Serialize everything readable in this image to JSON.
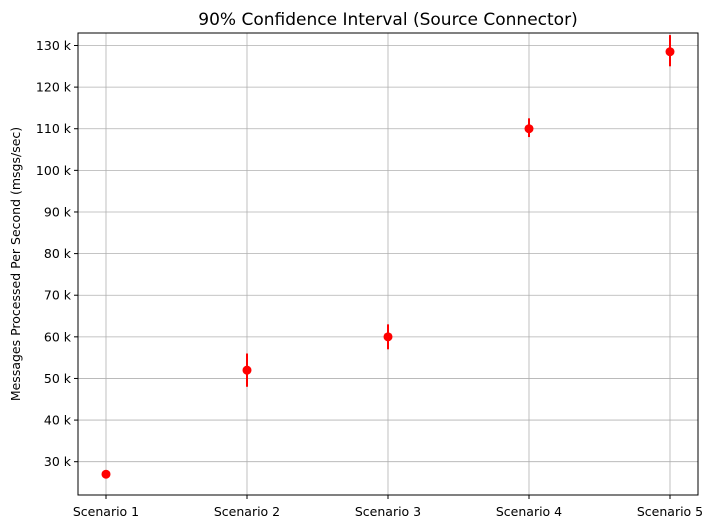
{
  "chart_data": {
    "type": "scatter",
    "title": "90% Confidence Interval (Source Connector)",
    "xlabel": "",
    "ylabel": "Messages Processed Per Second (msgs/sec)",
    "categories": [
      "Scenario 1",
      "Scenario 2",
      "Scenario 3",
      "Scenario 4",
      "Scenario 5"
    ],
    "values": [
      27000,
      52000,
      60000,
      110000,
      128500
    ],
    "ci_lower": [
      27000,
      48000,
      57000,
      108000,
      125000
    ],
    "ci_upper": [
      27000,
      56000,
      63000,
      112500,
      132500
    ],
    "ylim": [
      22000,
      133000
    ],
    "yticks": [
      30000,
      40000,
      50000,
      60000,
      70000,
      80000,
      90000,
      100000,
      110000,
      120000,
      130000
    ],
    "ytick_labels": [
      "30 k",
      "40 k",
      "50 k",
      "60 k",
      "70 k",
      "80 k",
      "90 k",
      "100 k",
      "110 k",
      "120 k",
      "130 k"
    ],
    "grid": true,
    "marker_color": "#ff0000"
  }
}
